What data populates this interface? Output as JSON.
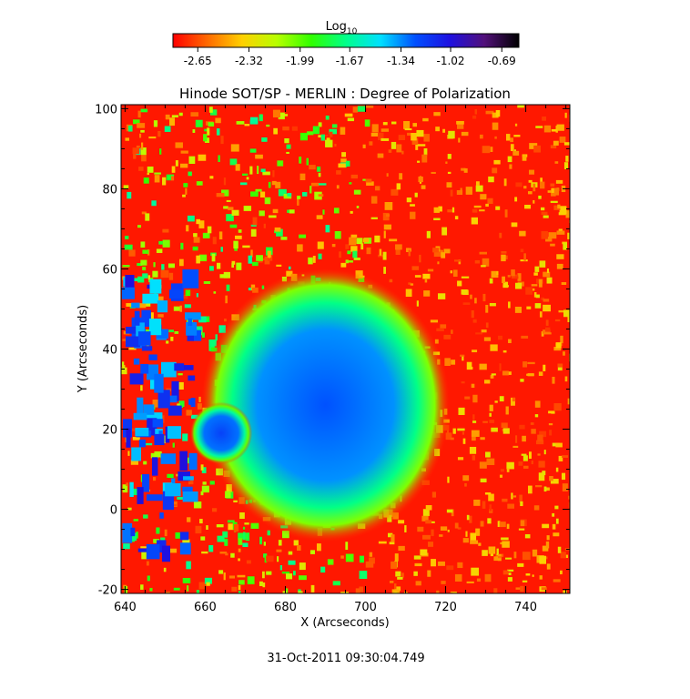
{
  "chart_data": {
    "type": "heatmap",
    "title": "Hinode SOT/SP - MERLIN : Degree of Polarization",
    "xlabel": "X (Arcseconds)",
    "ylabel": "Y (Arcseconds)",
    "xlim": [
      639,
      751
    ],
    "ylim": [
      -21,
      101
    ],
    "x_ticks": [
      640,
      660,
      680,
      700,
      720,
      740
    ],
    "y_ticks": [
      -20,
      0,
      20,
      40,
      60,
      80,
      100
    ],
    "colorbar": {
      "label_base": "Log",
      "label_sub": "10",
      "range": [
        -2.81,
        -0.58
      ],
      "tick_labels": [
        "-2.65",
        "-2.32",
        "-1.99",
        "-1.67",
        "-1.34",
        "-1.02",
        "-0.69"
      ],
      "tick_values": [
        -2.65,
        -2.32,
        -1.99,
        -1.67,
        -1.34,
        -1.02,
        -0.69
      ],
      "colors": [
        "#ff0000",
        "#ff6a00",
        "#ffd000",
        "#b8ff00",
        "#30ff00",
        "#00ff8a",
        "#00e0ff",
        "#0050ff",
        "#1e10e0",
        "#52107a",
        "#000000"
      ]
    },
    "features": [
      {
        "name": "umbra",
        "x": 691,
        "y": 25,
        "rx": 13,
        "ry": 14,
        "value": -0.8
      },
      {
        "name": "penumbra",
        "x": 690,
        "y": 26,
        "rx": 20,
        "ry": 22,
        "value": -1.25
      },
      {
        "name": "pore",
        "x": 664,
        "y": 19,
        "rx": 5,
        "ry": 5,
        "value": -1.2
      }
    ],
    "background_value": -2.7
  },
  "footer": {
    "timestamp": "31-Oct-2011 09:30:04.749"
  }
}
